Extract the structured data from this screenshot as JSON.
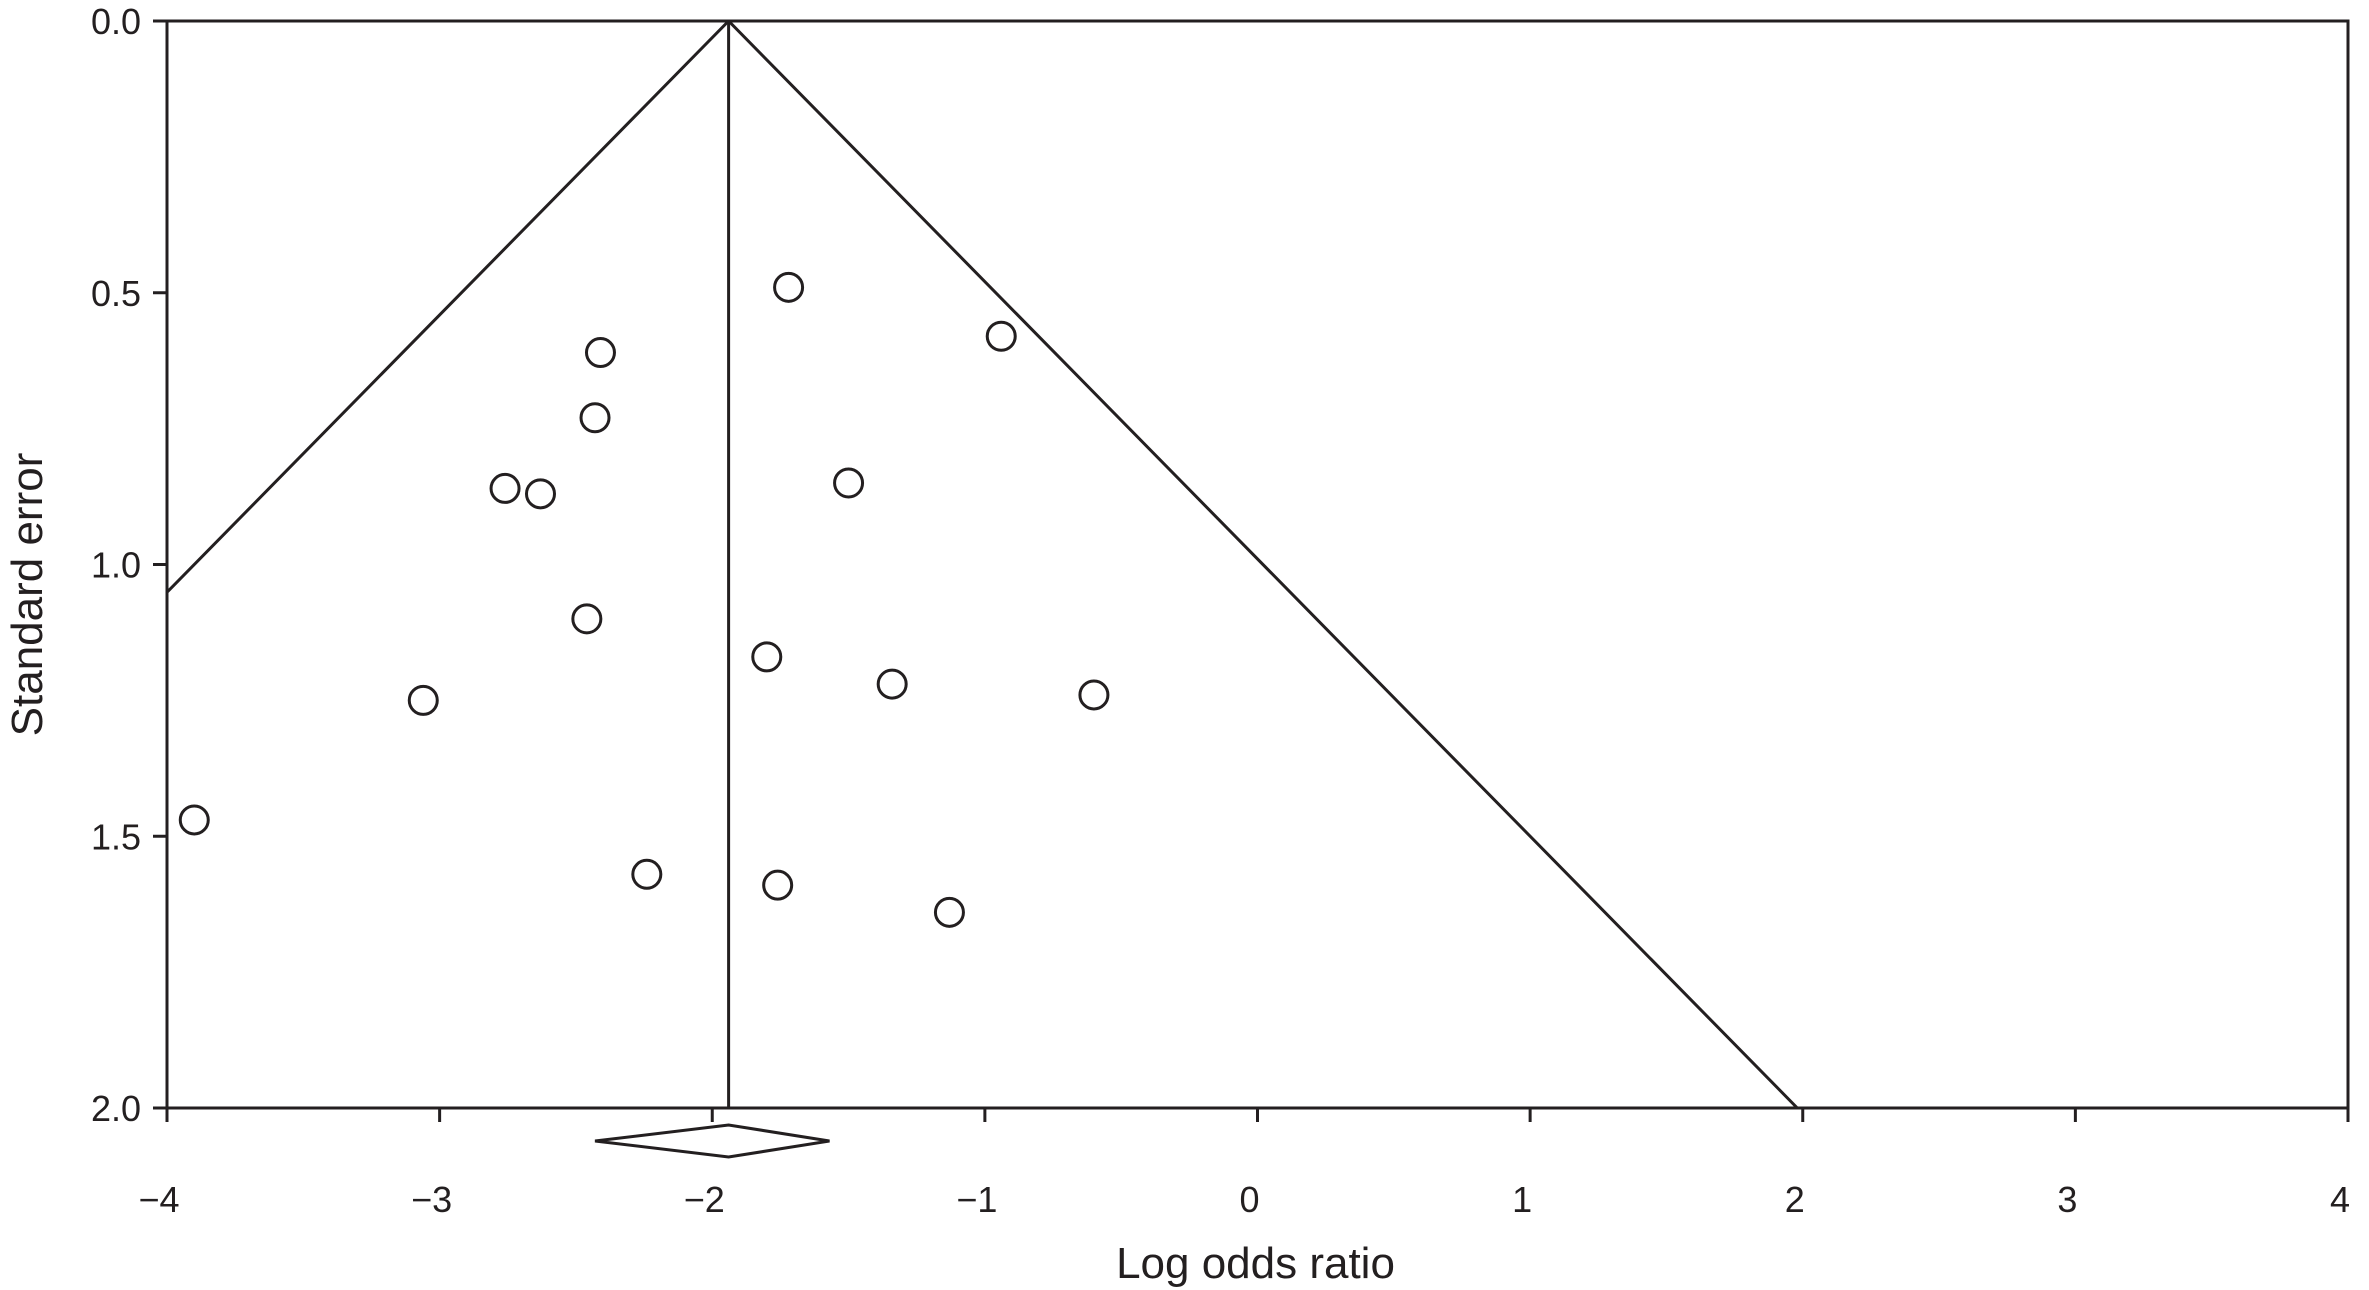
{
  "chart_data": {
    "type": "scatter",
    "subtype": "funnel-plot",
    "title": "",
    "xlabel": "Log odds ratio",
    "ylabel": "Standard error",
    "xlim": [
      -4,
      4
    ],
    "ylim": [
      2.0,
      0.0
    ],
    "y_inverted": true,
    "x_ticks": [
      -4,
      -3,
      -2,
      -1,
      0,
      1,
      2,
      3,
      4
    ],
    "x_tick_labels": [
      "−4",
      "−3",
      "−2",
      "−1",
      "0",
      "1",
      "2",
      "3",
      "4"
    ],
    "y_ticks": [
      0.0,
      0.5,
      1.0,
      1.5,
      2.0
    ],
    "y_tick_labels": [
      "0.0",
      "0.5",
      "1.0",
      "1.5",
      "2.0"
    ],
    "grid": false,
    "legend": "none",
    "pooled_estimate": -1.94,
    "funnel_multiplier": 1.96,
    "summary_diamond": {
      "center": -1.94,
      "lower": -2.43,
      "upper": -1.57
    },
    "colors": {
      "stroke": "#231f20",
      "marker_fill": "#ffffff",
      "background": "#ffffff"
    },
    "points": [
      {
        "x": -1.72,
        "y": 0.49
      },
      {
        "x": -0.94,
        "y": 0.58
      },
      {
        "x": -2.41,
        "y": 0.61
      },
      {
        "x": -2.43,
        "y": 0.73
      },
      {
        "x": -2.76,
        "y": 0.86
      },
      {
        "x": -2.63,
        "y": 0.87
      },
      {
        "x": -1.5,
        "y": 0.85
      },
      {
        "x": -2.46,
        "y": 1.1
      },
      {
        "x": -1.8,
        "y": 1.17
      },
      {
        "x": -1.34,
        "y": 1.22
      },
      {
        "x": -0.6,
        "y": 1.24
      },
      {
        "x": -3.06,
        "y": 1.25
      },
      {
        "x": -3.9,
        "y": 1.47
      },
      {
        "x": -2.24,
        "y": 1.57
      },
      {
        "x": -1.76,
        "y": 1.59
      },
      {
        "x": -1.13,
        "y": 1.64
      }
    ]
  }
}
